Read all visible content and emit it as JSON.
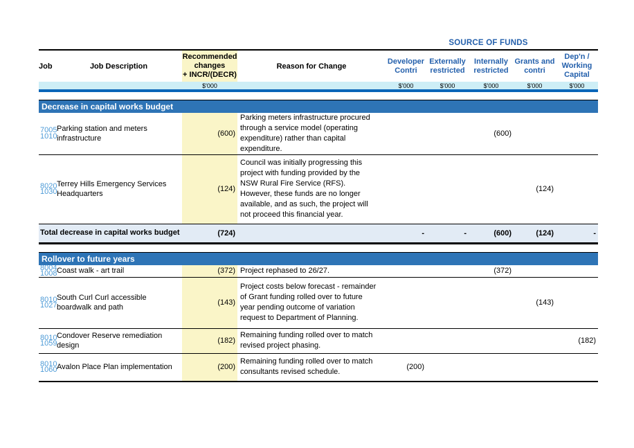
{
  "header": {
    "source_of_funds": "SOURCE OF FUNDS",
    "columns": {
      "job": "Job",
      "description": "Job Description",
      "changes": "Recommended\nchanges\n+ INCR/(DECR)",
      "reason": "Reason for Change",
      "developer": "Developer\nContri",
      "externally": "Externally\nrestricted",
      "internally": "Internally\nrestricted",
      "grants": "Grants and\ncontri",
      "depn": "Dep'n /\nWorking\nCapital",
      "units": "$'000"
    }
  },
  "sections": [
    {
      "title": "Decrease in capital works budget",
      "rows": [
        {
          "job1": "7005",
          "job2": "1010",
          "description": "Parking station and meters infrastructure",
          "change": "(600)",
          "reason": "Parking meters infrastructure procured through a service model (operating expenditure) rather than capital expenditure.",
          "developer": "",
          "externally": "",
          "internally": "(600)",
          "grants": "",
          "depn": ""
        },
        {
          "job1": "8020",
          "job2": "1030",
          "description": "Terrey Hills Emergency Services Headquarters",
          "change": "(124)",
          "reason": "Council was initially progressing this project with funding provided by the NSW Rural Fire Service (RFS). However, these funds are no longer available, and as such, the project will not proceed this financial year.",
          "developer": "",
          "externally": "",
          "internally": "",
          "grants": "(124)",
          "depn": ""
        }
      ],
      "total": {
        "label": "Total decrease in capital works budget",
        "change": "(724)",
        "developer": "-",
        "externally": "-",
        "internally": "(600)",
        "grants": "(124)",
        "depn": "-"
      }
    },
    {
      "title": "Rollover to future years",
      "rows": [
        {
          "job1": "8004",
          "job2": "1008",
          "description": "Coast walk - art trail",
          "change": "(372)",
          "reason": "Project rephased to 26/27.",
          "developer": "",
          "externally": "",
          "internally": "(372)",
          "grants": "",
          "depn": ""
        },
        {
          "job1": "8010",
          "job2": "1027",
          "description": "South Curl Curl accessible boardwalk and path",
          "change": "(143)",
          "reason": "Project costs below forecast - remainder of Grant funding rolled over to future year pending outcome of variation request to Department of Planning.",
          "developer": "",
          "externally": "",
          "internally": "",
          "grants": "(143)",
          "depn": ""
        },
        {
          "job1": "8010",
          "job2": "1059",
          "description": "Condover Reserve remediation design",
          "change": "(182)",
          "reason": "Remaining funding rolled over to match revised project phasing.",
          "developer": "",
          "externally": "",
          "internally": "",
          "grants": "",
          "depn": "(182)"
        },
        {
          "job1": "8010",
          "job2": "1060",
          "description": "Avalon Place Plan implementation",
          "change": "(200)",
          "reason": "Remaining funding rolled over to match consultants revised schedule.",
          "developer": "(200)",
          "externally": "",
          "internally": "",
          "grants": "",
          "depn": ""
        }
      ]
    }
  ],
  "colors": {
    "section_header_blue": "#2E74B6",
    "rule_blue": "#0A66B8",
    "header_text_blue": "#2460AC",
    "job_number_blue": "#4E9BD7",
    "highlight_yellow": "#FAF5C8",
    "units_row_cyan": "#CDEEF6",
    "total_row_bg": "#E2EBF5"
  }
}
